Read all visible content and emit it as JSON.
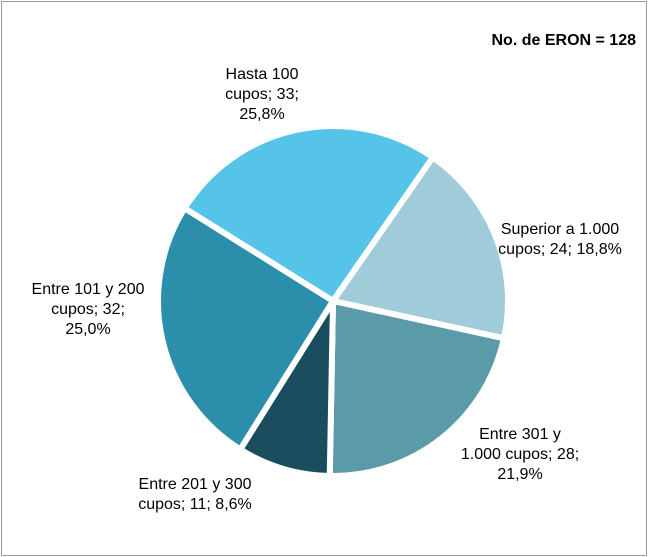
{
  "chart_data": {
    "type": "pie",
    "title": "No. de ERON = 128",
    "values": [
      33,
      24,
      28,
      11,
      32
    ],
    "value_labels": [
      "Hasta 100 cupos; 33; 25,8%",
      "Superior a 1.000 cupos; 24; 18,8%",
      "Entre 301 y 1.000 cupos; 28; 21,9%",
      "Entre 201 y 300 cupos; 11; 8,6%",
      "Entre 101 y 200 cupos; 32; 25,0%"
    ],
    "colors": [
      "#56c3e8",
      "#a0cbd8",
      "#5b9aa9",
      "#1a4e5e",
      "#2b8fab"
    ]
  }
}
